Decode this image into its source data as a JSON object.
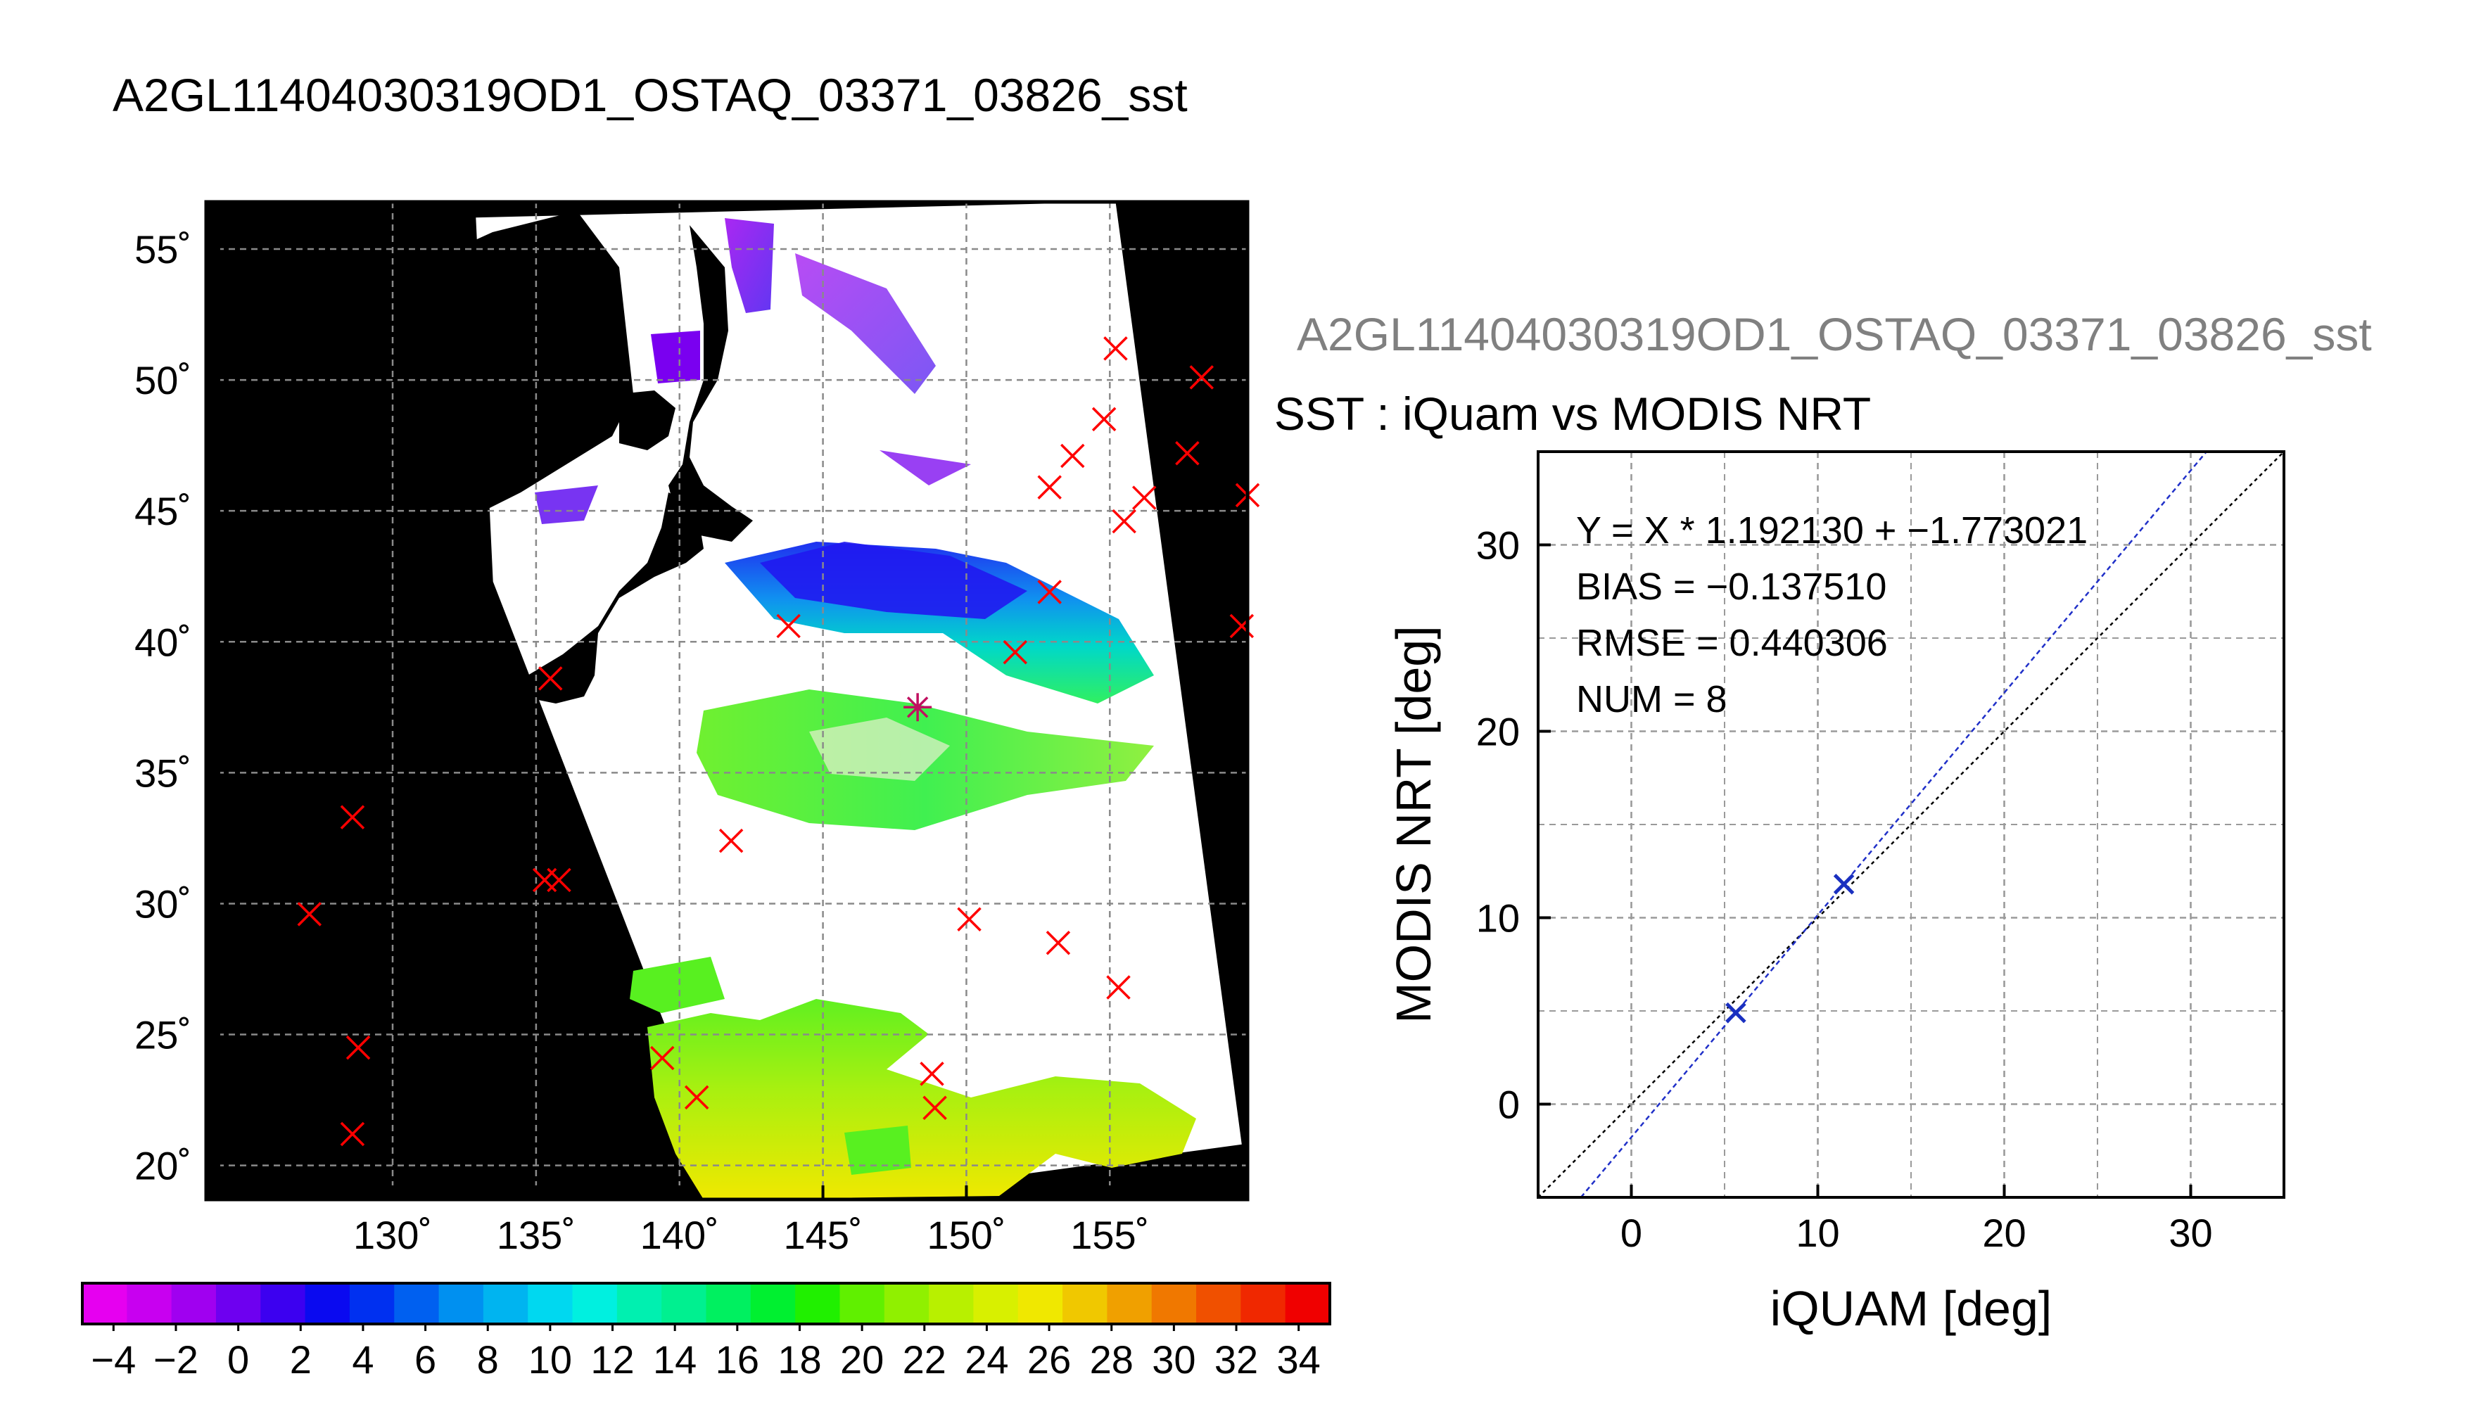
{
  "page_title": "A2GL11404030319OD1_OSTAQ_03371_03826_sst",
  "chart_data": [
    {
      "type": "map",
      "xlim": [
        123.5,
        159.8
      ],
      "ylim": [
        18.7,
        56.8
      ],
      "lon_ticks": [
        {
          "v": 130,
          "label": "130˚"
        },
        {
          "v": 135,
          "label": "135˚"
        },
        {
          "v": 140,
          "label": "140˚"
        },
        {
          "v": 145,
          "label": "145˚"
        },
        {
          "v": 150,
          "label": "150˚"
        },
        {
          "v": 155,
          "label": "155˚"
        }
      ],
      "lat_ticks": [
        {
          "v": 20,
          "label": "20˚"
        },
        {
          "v": 25,
          "label": "25˚"
        },
        {
          "v": 30,
          "label": "30˚"
        },
        {
          "v": 35,
          "label": "35˚"
        },
        {
          "v": 40,
          "label": "40˚"
        },
        {
          "v": 45,
          "label": "45˚"
        },
        {
          "v": 50,
          "label": "50˚"
        },
        {
          "v": 55,
          "label": "55˚"
        }
      ],
      "grid": true,
      "swath_corners": [
        [
          132.9,
          56.2
        ],
        [
          155.2,
          56.8
        ],
        [
          159.6,
          20.8
        ],
        [
          145.5,
          18.7
        ],
        [
          139.8,
          24.5
        ],
        [
          133.5,
          42.3
        ]
      ],
      "cross_markers": [
        {
          "lon": 155.2,
          "lat": 51.2
        },
        {
          "lon": 158.2,
          "lat": 50.1
        },
        {
          "lon": 154.8,
          "lat": 48.5
        },
        {
          "lon": 153.7,
          "lat": 47.1
        },
        {
          "lon": 157.7,
          "lat": 47.2
        },
        {
          "lon": 152.9,
          "lat": 45.9
        },
        {
          "lon": 156.2,
          "lat": 45.5
        },
        {
          "lon": 155.5,
          "lat": 44.6
        },
        {
          "lon": 159.8,
          "lat": 45.6
        },
        {
          "lon": 152.9,
          "lat": 41.9
        },
        {
          "lon": 159.6,
          "lat": 40.6
        },
        {
          "lon": 143.8,
          "lat": 40.6
        },
        {
          "lon": 151.7,
          "lat": 39.6
        },
        {
          "lon": 135.5,
          "lat": 38.6
        },
        {
          "lon": 128.6,
          "lat": 33.3
        },
        {
          "lon": 141.8,
          "lat": 32.4
        },
        {
          "lon": 135.3,
          "lat": 30.9
        },
        {
          "lon": 135.8,
          "lat": 30.9
        },
        {
          "lon": 127.1,
          "lat": 29.6
        },
        {
          "lon": 150.1,
          "lat": 29.4
        },
        {
          "lon": 153.2,
          "lat": 28.5
        },
        {
          "lon": 155.3,
          "lat": 26.8
        },
        {
          "lon": 128.8,
          "lat": 24.5
        },
        {
          "lon": 139.4,
          "lat": 24.1
        },
        {
          "lon": 148.8,
          "lat": 23.5
        },
        {
          "lon": 140.6,
          "lat": 22.6
        },
        {
          "lon": 148.9,
          "lat": 22.2
        },
        {
          "lon": 128.6,
          "lat": 21.2
        }
      ],
      "star_markers": [
        {
          "lon": 148.3,
          "lat": 37.5
        }
      ]
    },
    {
      "type": "colorbar",
      "range": [
        -5,
        35
      ],
      "step": 2,
      "colors": [
        "#e600f0",
        "#c800f0",
        "#a000f0",
        "#6e00f0",
        "#3c00f0",
        "#0a0af0",
        "#0030f0",
        "#0060f0",
        "#0090f0",
        "#00b4f0",
        "#00d8f0",
        "#00f0e0",
        "#00f0b0",
        "#00f090",
        "#00f060",
        "#00f030",
        "#20f000",
        "#60f000",
        "#90f000",
        "#b8f000",
        "#d8f000",
        "#f0e800",
        "#f0c800",
        "#f0a000",
        "#f07800",
        "#f05000",
        "#f02800",
        "#f00000"
      ],
      "tick_labels": [
        "−4",
        "−2",
        "0",
        "2",
        "4",
        "6",
        "8",
        "10",
        "12",
        "14",
        "16",
        "18",
        "20",
        "22",
        "24",
        "26",
        "28",
        "30",
        "32",
        "34"
      ]
    },
    {
      "type": "scatter",
      "title": "SST : iQuam vs MODIS NRT",
      "overflow_title": "A2GL11404030319OD1_OSTAQ_03371_03826_sst",
      "xlabel": "iQUAM [deg]",
      "ylabel": "MODIS NRT [deg]",
      "xlim": [
        -5,
        35
      ],
      "ylim": [
        -5,
        35
      ],
      "xticks": [
        0,
        10,
        20,
        30
      ],
      "yticks": [
        0,
        10,
        20,
        30
      ],
      "grid": true,
      "points": [
        [
          5.6,
          4.9
        ],
        [
          11.4,
          11.8
        ]
      ],
      "fit": {
        "slope": 1.19213,
        "intercept": -1.773021
      },
      "annotations": [
        "Y = X * 1.192130 + −1.773021",
        "BIAS = −0.137510",
        "RMSE = 0.440306",
        "NUM = 8"
      ],
      "colors": {
        "fit": "#2030c8",
        "points": "#1a30c0",
        "identity": "#000000"
      }
    }
  ]
}
